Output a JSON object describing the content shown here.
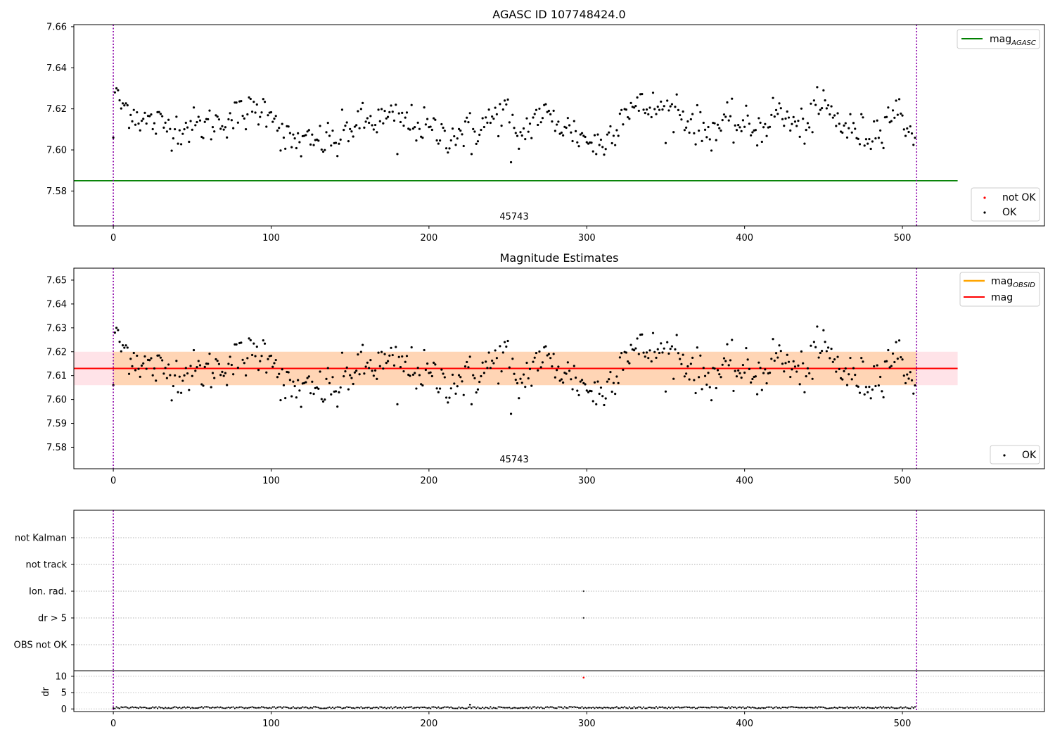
{
  "chart_data": [
    {
      "type": "scatter",
      "title": "AGASC ID 107748424.0",
      "xlim": [
        -25,
        590
      ],
      "ylim": [
        7.563,
        7.661
      ],
      "xticks": [
        0,
        100,
        200,
        300,
        400,
        500
      ],
      "yticks": [
        7.58,
        7.6,
        7.62,
        7.64,
        7.66
      ],
      "ytick_labels": [
        "7.58",
        "7.60",
        "7.62",
        "7.64",
        "7.66"
      ],
      "reference_line": {
        "name": "mag",
        "subscript": "AGASC",
        "value": 7.585,
        "x_range": [
          0,
          535
        ],
        "color": "#008000"
      },
      "obs_boundaries": [
        0,
        509
      ],
      "obsid_label": "45743",
      "obsid_label_x": 254,
      "series": [
        {
          "name": "not OK",
          "color": "#ff0000",
          "count": 0
        },
        {
          "name": "OK",
          "color": "#000000",
          "count": 509
        }
      ],
      "legend_upper": "top-right",
      "legend_lower": "bottom-right"
    },
    {
      "type": "scatter",
      "title": "Magnitude Estimates",
      "xlim": [
        -25,
        590
      ],
      "ylim": [
        7.571,
        7.655
      ],
      "xticks": [
        0,
        100,
        200,
        300,
        400,
        500
      ],
      "yticks": [
        7.58,
        7.59,
        7.6,
        7.61,
        7.62,
        7.63,
        7.64,
        7.65
      ],
      "ytick_labels": [
        "7.58",
        "7.59",
        "7.60",
        "7.61",
        "7.62",
        "7.63",
        "7.64",
        "7.65"
      ],
      "mag_line": {
        "name": "mag",
        "value": 7.613,
        "color": "#ff0000"
      },
      "mag_obsid": {
        "name": "mag",
        "subscript": "OBSID",
        "value": 7.613,
        "low": 7.606,
        "high": 7.62,
        "color": "#ffa500"
      },
      "band_x_range": [
        -25,
        535
      ],
      "obs_boundaries": [
        0,
        509
      ],
      "obsid_label": "45743",
      "obsid_label_x": 254,
      "series": [
        {
          "name": "OK",
          "color": "#000000",
          "count": 509
        }
      ],
      "legend_upper": "top-right",
      "legend_lower": "bottom-right"
    },
    {
      "type": "scatter",
      "title": "",
      "xlim": [
        -25,
        590
      ],
      "categories": [
        "not Kalman",
        "not track",
        "Ion. rad.",
        "dr > 5",
        "OBS not OK"
      ],
      "flag_points": [
        {
          "category": "Ion. rad.",
          "x": 298
        },
        {
          "category": "dr > 5",
          "x": 298
        }
      ],
      "obs_boundaries": [
        0,
        509
      ],
      "grid": true
    },
    {
      "type": "scatter",
      "title": "",
      "ylabel": "dr",
      "xlim": [
        -25,
        590
      ],
      "ylim": [
        -0.8,
        11.7
      ],
      "xticks": [
        0,
        100,
        200,
        300,
        400,
        500
      ],
      "yticks": [
        0,
        5,
        10
      ],
      "ytick_labels": [
        "0",
        "5",
        "10"
      ],
      "dr_baseline": 0.4,
      "outliers": [
        {
          "x": 226,
          "y": 1.3,
          "color": "#000000"
        },
        {
          "x": 298,
          "y": 9.6,
          "color": "#ff0000"
        }
      ],
      "obs_boundaries": [
        0,
        509
      ],
      "grid": true
    }
  ]
}
